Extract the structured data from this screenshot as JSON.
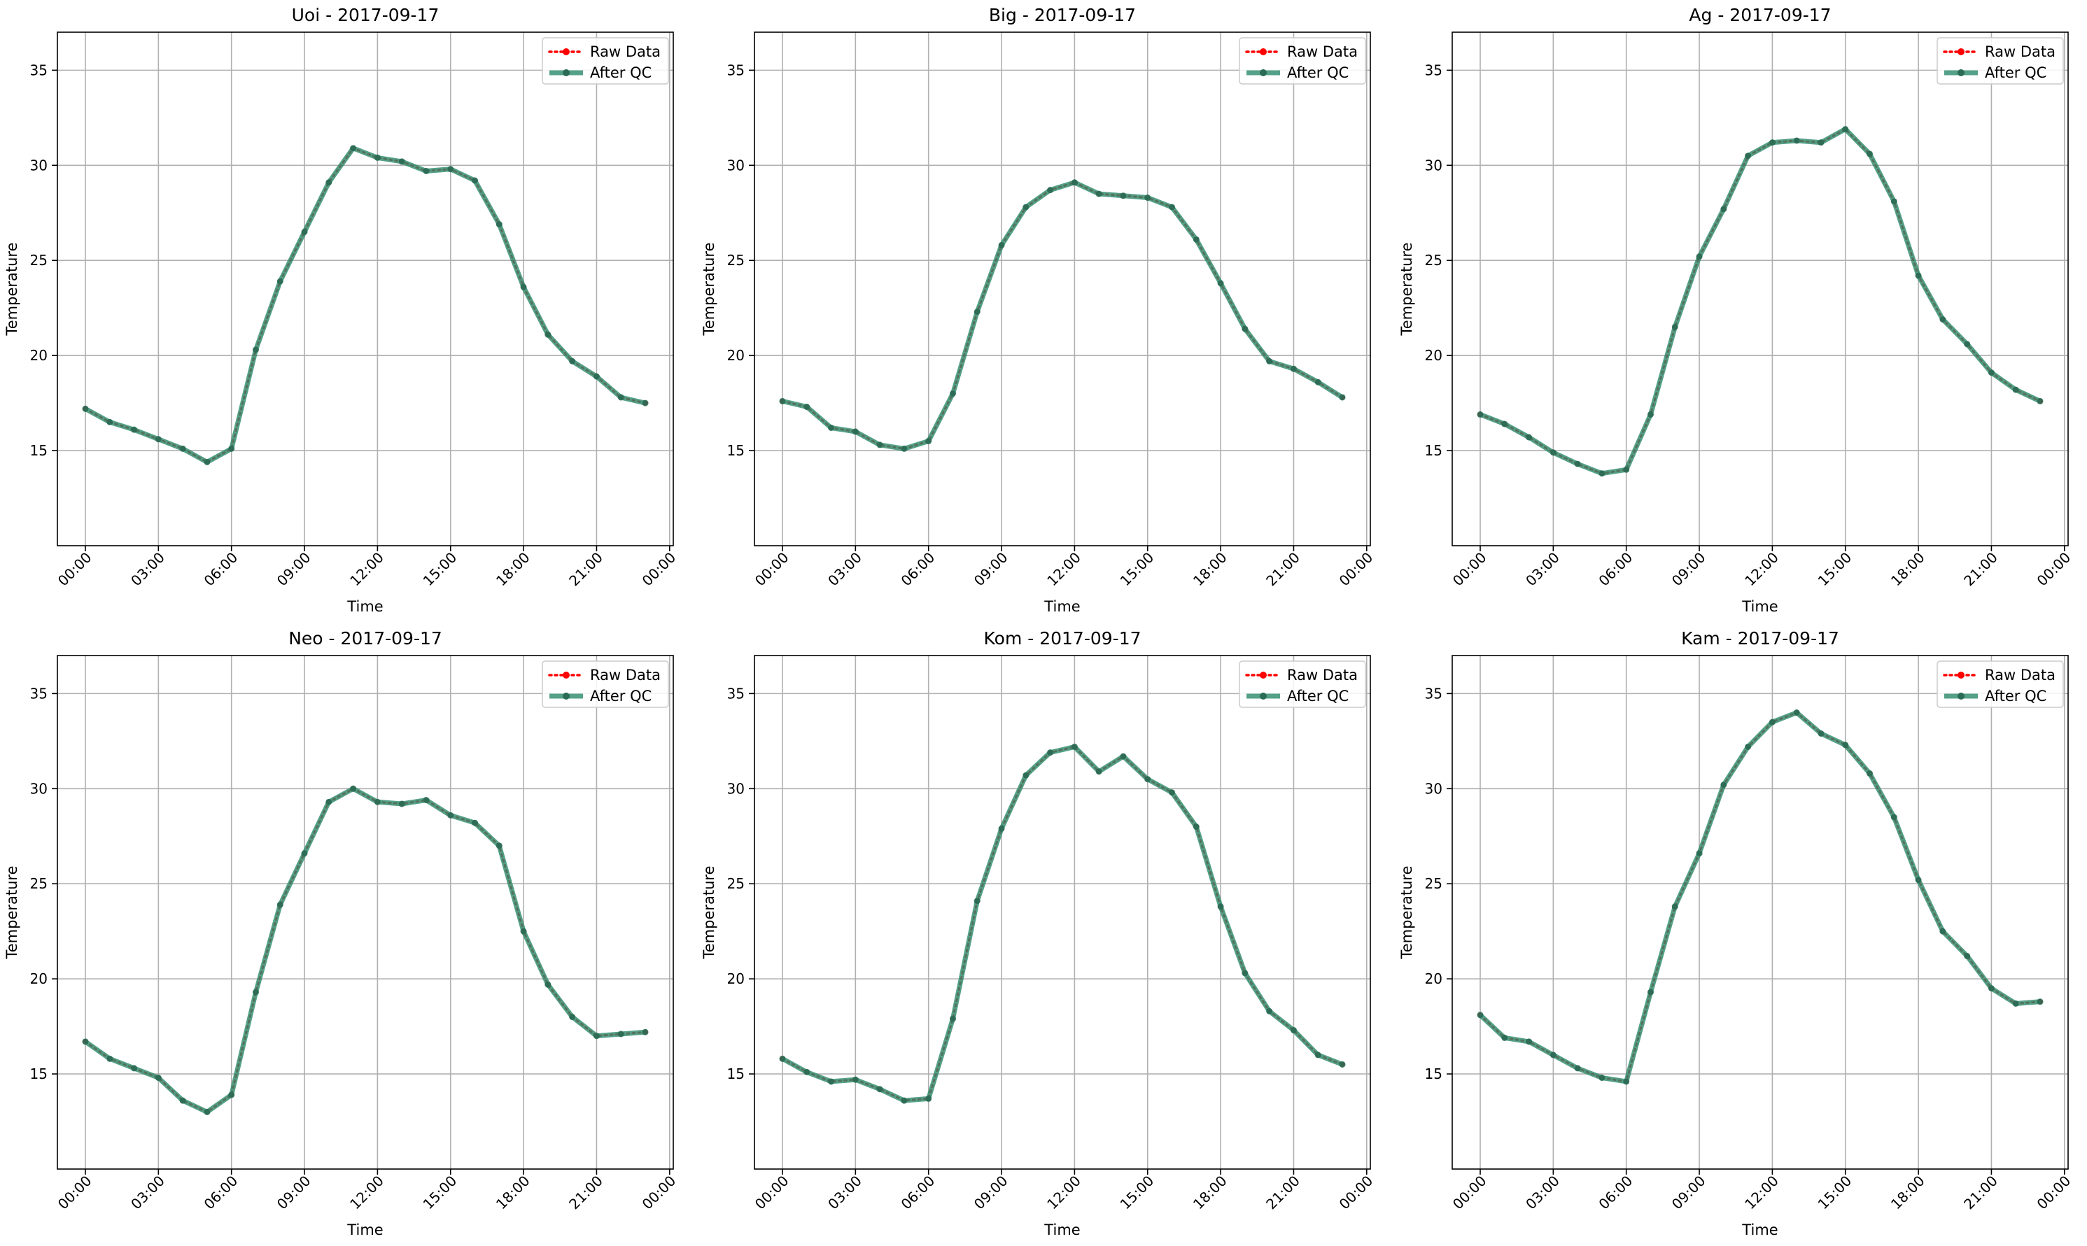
{
  "chart_data": [
    {
      "type": "line",
      "title": "Uoi - 2017-09-17",
      "xlabel": "Time",
      "ylabel": "Temperature",
      "ylim": [
        10,
        37
      ],
      "yticks": [
        15,
        20,
        25,
        30,
        35
      ],
      "xticks": [
        "00:00",
        "03:00",
        "06:00",
        "09:00",
        "12:00",
        "15:00",
        "18:00",
        "21:00",
        "00:00"
      ],
      "grid": true,
      "legend_position": "top-right",
      "x": [
        "00:00",
        "01:00",
        "02:00",
        "03:00",
        "04:00",
        "05:00",
        "06:00",
        "07:00",
        "08:00",
        "09:00",
        "10:00",
        "11:00",
        "12:00",
        "13:00",
        "14:00",
        "15:00",
        "16:00",
        "17:00",
        "18:00",
        "19:00",
        "20:00",
        "21:00",
        "22:00",
        "23:00"
      ],
      "series": [
        {
          "name": "Raw Data",
          "color": "#ff0000",
          "values": [
            17.2,
            16.5,
            16.1,
            15.6,
            15.1,
            14.4,
            15.1,
            20.3,
            23.9,
            26.5,
            29.1,
            30.9,
            30.4,
            30.2,
            29.7,
            29.8,
            29.2,
            26.9,
            23.6,
            21.1,
            19.7,
            18.9,
            17.8,
            17.5
          ]
        },
        {
          "name": "After QC",
          "color": "#2e8b6e",
          "values": [
            17.2,
            16.5,
            16.1,
            15.6,
            15.1,
            14.4,
            15.1,
            20.3,
            23.9,
            26.5,
            29.1,
            30.9,
            30.4,
            30.2,
            29.7,
            29.8,
            29.2,
            26.9,
            23.6,
            21.1,
            19.7,
            18.9,
            17.8,
            17.5
          ]
        }
      ]
    },
    {
      "type": "line",
      "title": "Big - 2017-09-17",
      "xlabel": "Time",
      "ylabel": "Temperature",
      "ylim": [
        10,
        37
      ],
      "yticks": [
        15,
        20,
        25,
        30,
        35
      ],
      "xticks": [
        "00:00",
        "03:00",
        "06:00",
        "09:00",
        "12:00",
        "15:00",
        "18:00",
        "21:00",
        "00:00"
      ],
      "grid": true,
      "legend_position": "top-right",
      "x": [
        "00:00",
        "01:00",
        "02:00",
        "03:00",
        "04:00",
        "05:00",
        "06:00",
        "07:00",
        "08:00",
        "09:00",
        "10:00",
        "11:00",
        "12:00",
        "13:00",
        "14:00",
        "15:00",
        "16:00",
        "17:00",
        "18:00",
        "19:00",
        "20:00",
        "21:00",
        "22:00",
        "23:00"
      ],
      "series": [
        {
          "name": "Raw Data",
          "color": "#ff0000",
          "values": [
            17.6,
            17.3,
            16.2,
            16.0,
            15.3,
            15.1,
            15.5,
            18.0,
            22.3,
            25.8,
            27.8,
            28.7,
            29.1,
            28.5,
            28.4,
            28.3,
            27.8,
            26.1,
            23.8,
            21.4,
            19.7,
            19.3,
            18.6,
            17.8
          ]
        },
        {
          "name": "After QC",
          "color": "#2e8b6e",
          "values": [
            17.6,
            17.3,
            16.2,
            16.0,
            15.3,
            15.1,
            15.5,
            18.0,
            22.3,
            25.8,
            27.8,
            28.7,
            29.1,
            28.5,
            28.4,
            28.3,
            27.8,
            26.1,
            23.8,
            21.4,
            19.7,
            19.3,
            18.6,
            17.8
          ]
        }
      ]
    },
    {
      "type": "line",
      "title": "Ag - 2017-09-17",
      "xlabel": "Time",
      "ylabel": "Temperature",
      "ylim": [
        10,
        37
      ],
      "yticks": [
        15,
        20,
        25,
        30,
        35
      ],
      "xticks": [
        "00:00",
        "03:00",
        "06:00",
        "09:00",
        "12:00",
        "15:00",
        "18:00",
        "21:00",
        "00:00"
      ],
      "grid": true,
      "legend_position": "top-right",
      "x": [
        "00:00",
        "01:00",
        "02:00",
        "03:00",
        "04:00",
        "05:00",
        "06:00",
        "07:00",
        "08:00",
        "09:00",
        "10:00",
        "11:00",
        "12:00",
        "13:00",
        "14:00",
        "15:00",
        "16:00",
        "17:00",
        "18:00",
        "19:00",
        "20:00",
        "21:00",
        "22:00",
        "23:00"
      ],
      "series": [
        {
          "name": "Raw Data",
          "color": "#ff0000",
          "values": [
            16.9,
            16.4,
            15.7,
            14.9,
            14.3,
            13.8,
            14.0,
            16.9,
            21.5,
            25.2,
            27.7,
            30.5,
            31.2,
            31.3,
            31.2,
            31.9,
            30.6,
            28.1,
            24.2,
            21.9,
            20.6,
            19.1,
            18.2,
            17.6
          ]
        },
        {
          "name": "After QC",
          "color": "#2e8b6e",
          "values": [
            16.9,
            16.4,
            15.7,
            14.9,
            14.3,
            13.8,
            14.0,
            16.9,
            21.5,
            25.2,
            27.7,
            30.5,
            31.2,
            31.3,
            31.2,
            31.9,
            30.6,
            28.1,
            24.2,
            21.9,
            20.6,
            19.1,
            18.2,
            17.6
          ]
        }
      ]
    },
    {
      "type": "line",
      "title": "Neo - 2017-09-17",
      "xlabel": "Time",
      "ylabel": "Temperature",
      "ylim": [
        10,
        37
      ],
      "yticks": [
        15,
        20,
        25,
        30,
        35
      ],
      "xticks": [
        "00:00",
        "03:00",
        "06:00",
        "09:00",
        "12:00",
        "15:00",
        "18:00",
        "21:00",
        "00:00"
      ],
      "grid": true,
      "legend_position": "top-right",
      "x": [
        "00:00",
        "01:00",
        "02:00",
        "03:00",
        "04:00",
        "05:00",
        "06:00",
        "07:00",
        "08:00",
        "09:00",
        "10:00",
        "11:00",
        "12:00",
        "13:00",
        "14:00",
        "15:00",
        "16:00",
        "17:00",
        "18:00",
        "19:00",
        "20:00",
        "21:00",
        "22:00",
        "23:00"
      ],
      "series": [
        {
          "name": "Raw Data",
          "color": "#ff0000",
          "values": [
            16.7,
            15.8,
            15.3,
            14.8,
            13.6,
            13.0,
            13.9,
            19.3,
            23.9,
            26.6,
            29.3,
            30.0,
            29.3,
            29.2,
            29.4,
            28.6,
            28.2,
            27.0,
            22.5,
            19.7,
            18.0,
            17.0,
            17.1,
            17.2
          ]
        },
        {
          "name": "After QC",
          "color": "#2e8b6e",
          "values": [
            16.7,
            15.8,
            15.3,
            14.8,
            13.6,
            13.0,
            13.9,
            19.3,
            23.9,
            26.6,
            29.3,
            30.0,
            29.3,
            29.2,
            29.4,
            28.6,
            28.2,
            27.0,
            22.5,
            19.7,
            18.0,
            17.0,
            17.1,
            17.2
          ]
        }
      ]
    },
    {
      "type": "line",
      "title": "Kom - 2017-09-17",
      "xlabel": "Time",
      "ylabel": "Temperature",
      "ylim": [
        10,
        37
      ],
      "yticks": [
        15,
        20,
        25,
        30,
        35
      ],
      "xticks": [
        "00:00",
        "03:00",
        "06:00",
        "09:00",
        "12:00",
        "15:00",
        "18:00",
        "21:00",
        "00:00"
      ],
      "grid": true,
      "legend_position": "top-right",
      "x": [
        "00:00",
        "01:00",
        "02:00",
        "03:00",
        "04:00",
        "05:00",
        "06:00",
        "07:00",
        "08:00",
        "09:00",
        "10:00",
        "11:00",
        "12:00",
        "13:00",
        "14:00",
        "15:00",
        "16:00",
        "17:00",
        "18:00",
        "19:00",
        "20:00",
        "21:00",
        "22:00",
        "23:00"
      ],
      "series": [
        {
          "name": "Raw Data",
          "color": "#ff0000",
          "values": [
            15.8,
            15.1,
            14.6,
            14.7,
            14.2,
            13.6,
            13.7,
            17.9,
            24.1,
            27.9,
            30.7,
            31.9,
            32.2,
            30.9,
            31.7,
            30.5,
            29.8,
            28.0,
            23.8,
            20.3,
            18.3,
            17.3,
            16.0,
            15.5
          ]
        },
        {
          "name": "After QC",
          "color": "#2e8b6e",
          "values": [
            15.8,
            15.1,
            14.6,
            14.7,
            14.2,
            13.6,
            13.7,
            17.9,
            24.1,
            27.9,
            30.7,
            31.9,
            32.2,
            30.9,
            31.7,
            30.5,
            29.8,
            28.0,
            23.8,
            20.3,
            18.3,
            17.3,
            16.0,
            15.5
          ]
        }
      ]
    },
    {
      "type": "line",
      "title": "Kam - 2017-09-17",
      "xlabel": "Time",
      "ylabel": "Temperature",
      "ylim": [
        10,
        37
      ],
      "yticks": [
        15,
        20,
        25,
        30,
        35
      ],
      "xticks": [
        "00:00",
        "03:00",
        "06:00",
        "09:00",
        "12:00",
        "15:00",
        "18:00",
        "21:00",
        "00:00"
      ],
      "grid": true,
      "legend_position": "top-right",
      "x": [
        "00:00",
        "01:00",
        "02:00",
        "03:00",
        "04:00",
        "05:00",
        "06:00",
        "07:00",
        "08:00",
        "09:00",
        "10:00",
        "11:00",
        "12:00",
        "13:00",
        "14:00",
        "15:00",
        "16:00",
        "17:00",
        "18:00",
        "19:00",
        "20:00",
        "21:00",
        "22:00",
        "23:00"
      ],
      "series": [
        {
          "name": "Raw Data",
          "color": "#ff0000",
          "values": [
            18.1,
            16.9,
            16.7,
            16.0,
            15.3,
            14.8,
            14.6,
            19.3,
            23.8,
            26.6,
            30.2,
            32.2,
            33.5,
            34.0,
            32.9,
            32.3,
            30.8,
            28.5,
            25.2,
            22.5,
            21.2,
            19.5,
            18.7,
            18.8
          ]
        },
        {
          "name": "After QC",
          "color": "#2e8b6e",
          "values": [
            18.1,
            16.9,
            16.7,
            16.0,
            15.3,
            14.8,
            14.6,
            19.3,
            23.8,
            26.6,
            30.2,
            32.2,
            33.5,
            34.0,
            32.9,
            32.3,
            30.8,
            28.5,
            25.2,
            22.5,
            21.2,
            19.5,
            18.7,
            18.8
          ]
        }
      ]
    }
  ]
}
